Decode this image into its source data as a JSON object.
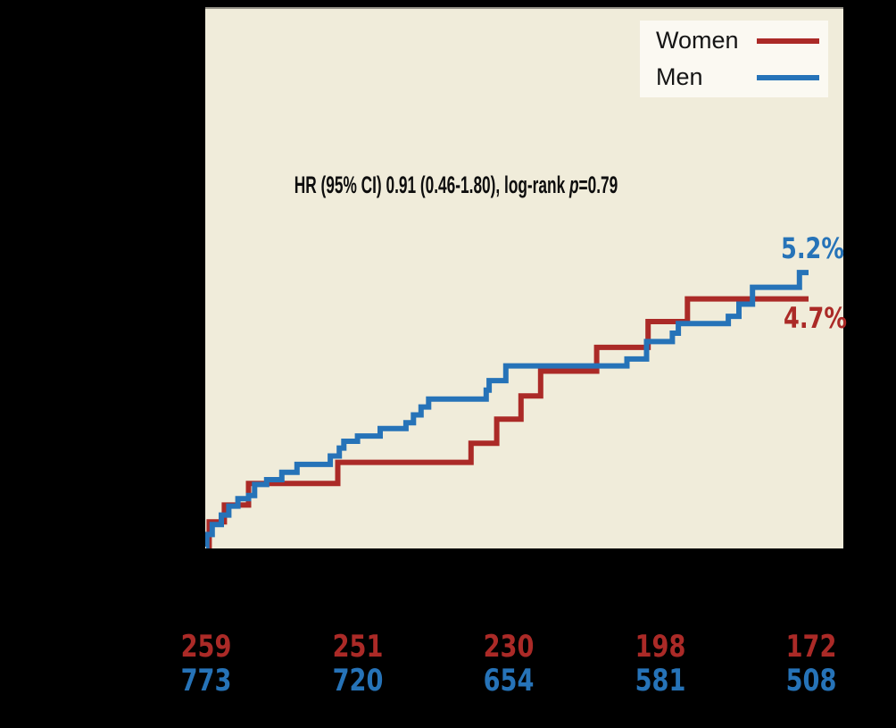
{
  "figure": {
    "background": "#000000",
    "panel_bg": "#F0ECDA",
    "panel_border_top": "#98958A",
    "legend": {
      "bg": "#FBF9F2",
      "items": [
        {
          "label": "Women",
          "color": "#AB2A27"
        },
        {
          "label": "Men",
          "color": "#2673B8"
        }
      ]
    },
    "annotation": {
      "prefix": "HR (95% CI) 0.91 (0.46-1.80), log-rank ",
      "italic": "p",
      "suffix": "=0.79"
    },
    "end_labels": {
      "men": {
        "text": "5.2%",
        "color": "#2673B8"
      },
      "women": {
        "text": "4.7%",
        "color": "#AB2A27"
      }
    }
  },
  "chart_data": {
    "type": "line",
    "subtype": "kaplan-meier-cumulative-incidence-steps",
    "title": "",
    "xlabel": "",
    "ylabel": "",
    "xlim": [
      0,
      4.21
    ],
    "ylim": [
      0,
      10.2
    ],
    "x_ticks": [
      0,
      1,
      2,
      3,
      4
    ],
    "grid": false,
    "legend_position": "top-right-inside",
    "annotation": "HR (95% CI) 0.91 (0.46-1.80), log-rank p=0.79",
    "series": [
      {
        "name": "Women",
        "color": "#AB2A27",
        "end_label": "4.7%",
        "end_time": 3.98,
        "steps": [
          [
            0,
            0
          ],
          [
            0.02,
            0.47
          ],
          [
            0.12,
            0.79
          ],
          [
            0.28,
            1.2
          ],
          [
            0.87,
            1.6
          ],
          [
            1.75,
            1.96
          ],
          [
            1.92,
            2.42
          ],
          [
            2.08,
            2.86
          ],
          [
            2.21,
            3.33
          ],
          [
            2.58,
            3.78
          ],
          [
            2.92,
            4.27
          ],
          [
            3.18,
            4.7
          ]
        ]
      },
      {
        "name": "Men",
        "color": "#2673B8",
        "end_label": "5.2%",
        "end_time": 3.98,
        "steps": [
          [
            0,
            0
          ],
          [
            0.004,
            0.23
          ],
          [
            0.04,
            0.42
          ],
          [
            0.1,
            0.6
          ],
          [
            0.15,
            0.77
          ],
          [
            0.21,
            0.91
          ],
          [
            0.28,
            0.97
          ],
          [
            0.32,
            1.18
          ],
          [
            0.4,
            1.27
          ],
          [
            0.5,
            1.41
          ],
          [
            0.6,
            1.56
          ],
          [
            0.82,
            1.72
          ],
          [
            0.88,
            1.87
          ],
          [
            0.91,
            2.0
          ],
          [
            1.0,
            2.1
          ],
          [
            1.15,
            2.24
          ],
          [
            1.32,
            2.35
          ],
          [
            1.37,
            2.5
          ],
          [
            1.42,
            2.65
          ],
          [
            1.47,
            2.8
          ],
          [
            1.85,
            2.97
          ],
          [
            1.87,
            3.15
          ],
          [
            1.98,
            3.43
          ],
          [
            2.78,
            3.56
          ],
          [
            2.91,
            3.89
          ],
          [
            3.08,
            4.05
          ],
          [
            3.12,
            4.23
          ],
          [
            3.45,
            4.37
          ],
          [
            3.52,
            4.6
          ],
          [
            3.61,
            4.92
          ],
          [
            3.92,
            5.2
          ]
        ]
      }
    ],
    "at_risk": {
      "ticks": [
        0,
        1,
        2,
        3,
        4
      ],
      "rows": [
        {
          "name": "Women",
          "color": "#AB2A27",
          "values": [
            "259",
            "251",
            "230",
            "198",
            "172"
          ]
        },
        {
          "name": "Men",
          "color": "#2673B8",
          "values": [
            "773",
            "720",
            "654",
            "581",
            "508"
          ]
        }
      ]
    }
  }
}
